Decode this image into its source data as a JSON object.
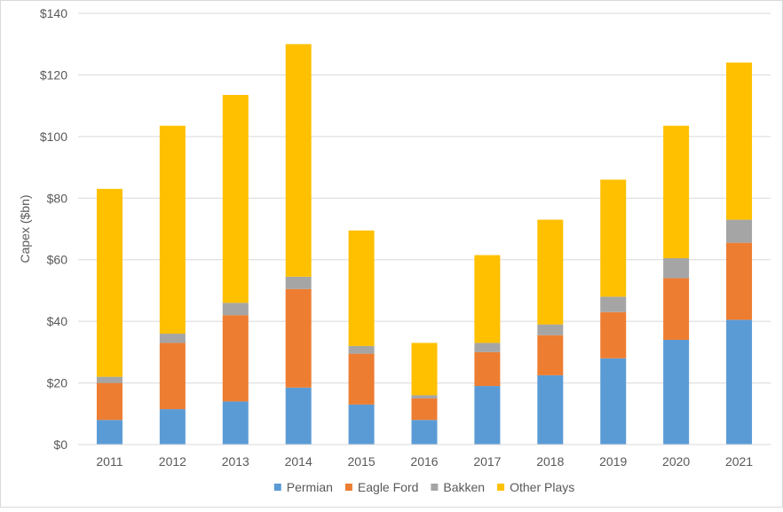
{
  "chart_data": {
    "type": "bar",
    "stacked": true,
    "title": "",
    "xlabel": "",
    "ylabel": "Capex ($bn)",
    "categories": [
      "2011",
      "2012",
      "2013",
      "2014",
      "2015",
      "2016",
      "2017",
      "2018",
      "2019",
      "2020",
      "2021"
    ],
    "yticks": [
      "$0",
      "$20",
      "$40",
      "$60",
      "$80",
      "$100",
      "$120",
      "$140"
    ],
    "ylim": [
      0,
      140
    ],
    "grid": true,
    "legend_position": "bottom",
    "series": [
      {
        "name": "Permian",
        "color": "#5B9BD5",
        "values": [
          8,
          11.5,
          14,
          18.5,
          13,
          8,
          19,
          22.5,
          28,
          34,
          40.5
        ]
      },
      {
        "name": "Eagle Ford",
        "color": "#ED7D31",
        "values": [
          12,
          21.5,
          28,
          32,
          16.5,
          7,
          11,
          13,
          15,
          20,
          25
        ]
      },
      {
        "name": "Bakken",
        "color": "#A5A5A5",
        "values": [
          2,
          3,
          4,
          4,
          2.5,
          1,
          3,
          3.5,
          5,
          6.5,
          7.5
        ]
      },
      {
        "name": "Other Plays",
        "color": "#FFC000",
        "values": [
          61,
          67.5,
          67.5,
          75.5,
          37.5,
          17,
          28.5,
          34,
          38,
          43,
          51
        ]
      }
    ]
  }
}
